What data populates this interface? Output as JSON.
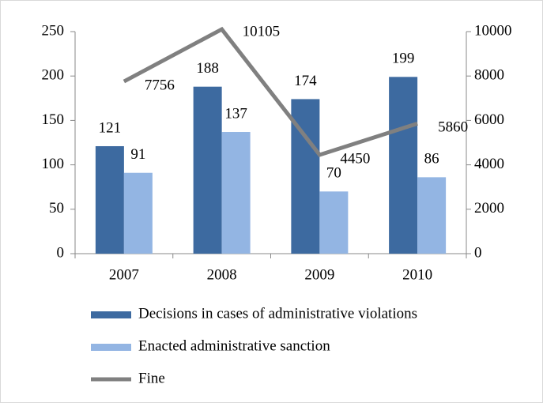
{
  "chart_data": {
    "type": "bar",
    "categories": [
      "2007",
      "2008",
      "2009",
      "2010"
    ],
    "series": [
      {
        "name": "Decisions in cases of administrative violations",
        "color": "#3d6aa0",
        "values": [
          121,
          188,
          174,
          199
        ]
      },
      {
        "name": "Enacted administrative sanction",
        "color": "#93b5e3",
        "values": [
          91,
          137,
          70,
          86
        ]
      },
      {
        "name": "Fine",
        "color": "#808080",
        "type": "line",
        "axis": "y2",
        "values": [
          7756,
          10105,
          4450,
          5860
        ]
      }
    ],
    "ylim": [
      0,
      250
    ],
    "yticks": [
      0,
      50,
      100,
      150,
      200,
      250
    ],
    "y2lim": [
      0,
      10000
    ],
    "y2ticks": [
      0,
      2000,
      4000,
      6000,
      8000,
      10000
    ],
    "legend": "bottom"
  }
}
